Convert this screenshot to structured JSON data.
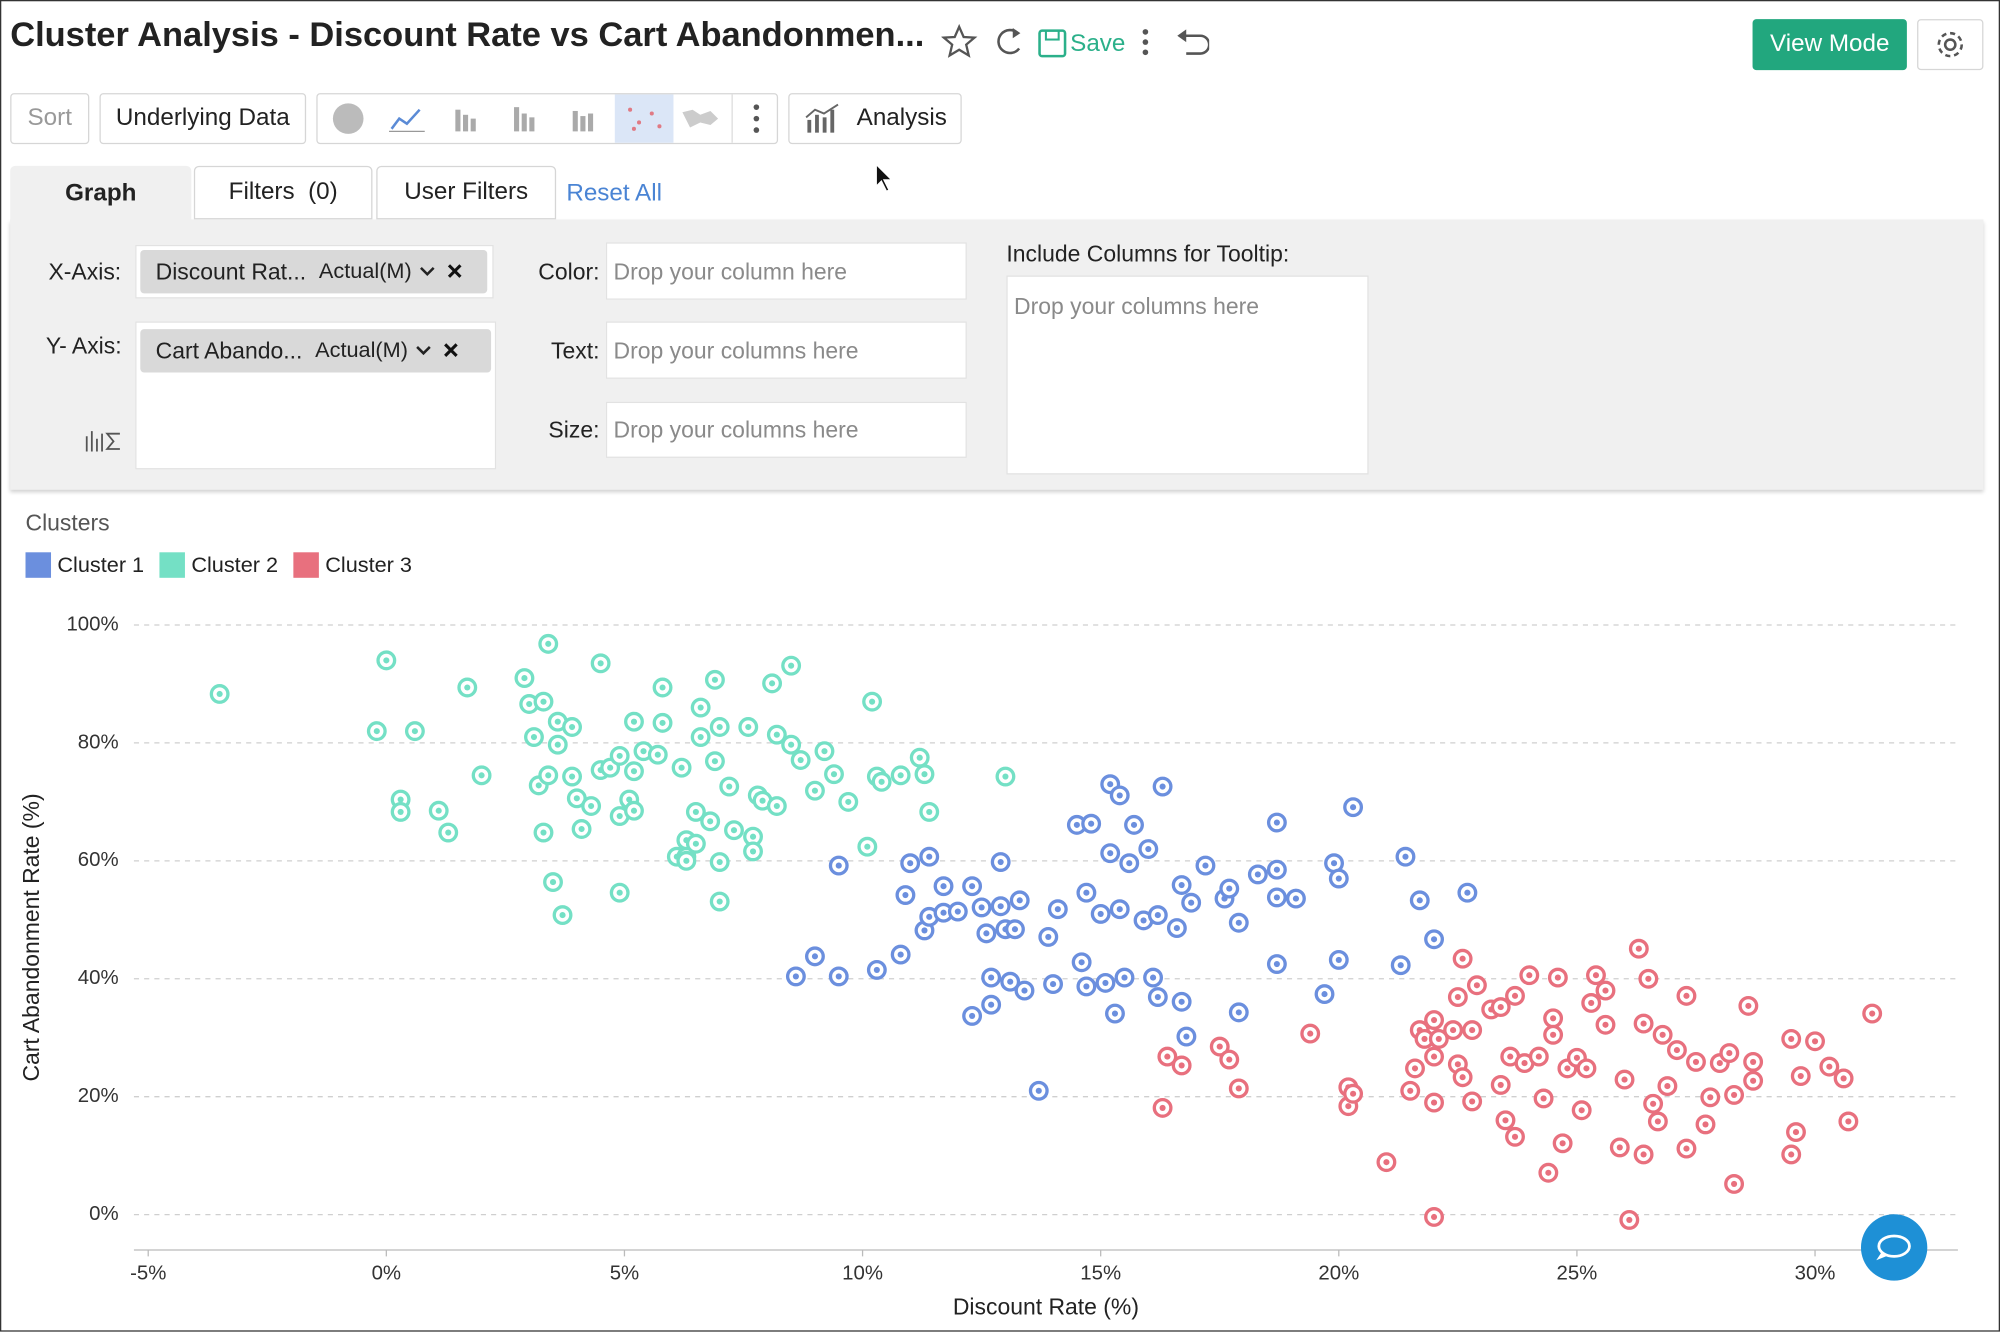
{
  "header": {
    "title": "Cluster Analysis - Discount Rate vs Cart Abandonmen...",
    "save": "Save",
    "view_mode": "View Mode"
  },
  "toolbar": {
    "sort": "Sort",
    "underlying_data": "Underlying Data",
    "analysis": "Analysis"
  },
  "tabs": [
    "Graph",
    "Filters  (0)",
    "User Filters"
  ],
  "reset_all": "Reset All",
  "shelf": {
    "x_axis_label": "X-Axis:",
    "x_axis_column": "Discount Rat...",
    "x_axis_agg": "Actual(M)",
    "y_axis_label": "Y- Axis:",
    "y_axis_column": "Cart Abando...",
    "y_axis_agg": "Actual(M)",
    "color_label": "Color:",
    "color_placeholder": "Drop your column here",
    "text_label": "Text:",
    "text_placeholder": "Drop your columns here",
    "size_label": "Size:",
    "size_placeholder": "Drop your columns here",
    "tooltip_label": "Include Columns for Tooltip:",
    "tooltip_placeholder": "Drop your columns here"
  },
  "chart_data": {
    "type": "scatter",
    "legend_title": "Clusters",
    "x_label": "Discount Rate (%)",
    "y_label": "Cart Abandonment Rate (%)",
    "xlim": [
      -5.3,
      33
    ],
    "ylim": [
      -6,
      100
    ],
    "xticks": [
      {
        "value": -5,
        "label": "-5%"
      },
      {
        "value": 0,
        "label": "0%"
      },
      {
        "value": 5,
        "label": "5%"
      },
      {
        "value": 10,
        "label": "10%"
      },
      {
        "value": 15,
        "label": "15%"
      },
      {
        "value": 20,
        "label": "20%"
      },
      {
        "value": 25,
        "label": "25%"
      },
      {
        "value": 30,
        "label": "30%"
      }
    ],
    "yticks": [
      {
        "value": 0,
        "label": "0%"
      },
      {
        "value": 20,
        "label": "20%"
      },
      {
        "value": 40,
        "label": "40%"
      },
      {
        "value": 60,
        "label": "60%"
      },
      {
        "value": 80,
        "label": "80%"
      },
      {
        "value": 100,
        "label": "100%"
      }
    ],
    "grid": true,
    "series": [
      {
        "name": "Cluster 1",
        "color": "#6b8fde",
        "x": [
          8.6,
          9.0,
          9.5,
          9.5,
          10.3,
          10.8,
          10.9,
          11.0,
          11.3,
          11.4,
          11.4,
          11.7,
          11.7,
          12.0,
          12.3,
          12.3,
          12.5,
          12.6,
          12.7,
          12.7,
          12.9,
          12.9,
          13.0,
          13.1,
          13.2,
          13.3,
          13.4,
          13.7,
          13.9,
          14.0,
          14.1,
          14.5,
          14.6,
          14.7,
          14.8,
          14.7,
          15.0,
          15.1,
          15.2,
          15.2,
          15.3,
          15.4,
          15.4,
          15.5,
          15.6,
          15.7,
          15.9,
          16.0,
          16.1,
          16.2,
          16.3,
          16.2,
          16.6,
          16.7,
          16.7,
          16.8,
          16.9,
          17.2,
          17.6,
          17.7,
          17.9,
          17.9,
          18.3,
          18.7,
          18.7,
          18.7,
          18.7,
          19.1,
          19.7,
          19.9,
          20.0,
          20.0,
          20.3,
          21.3,
          21.4,
          21.7,
          22.0,
          22.7
        ],
        "values": [
          40.4,
          43.8,
          40.4,
          59.2,
          41.5,
          44.1,
          54.2,
          59.6,
          48.2,
          50.5,
          60.7,
          55.7,
          51.2,
          51.4,
          33.7,
          55.7,
          52.1,
          47.7,
          40.2,
          35.6,
          52.3,
          59.8,
          48.4,
          39.5,
          48.4,
          53.3,
          38,
          21,
          47.1,
          39.1,
          51.8,
          66.1,
          42.8,
          38.7,
          66.3,
          54.6,
          51,
          39.3,
          61.3,
          73,
          34.1,
          51.8,
          71.1,
          40.2,
          59.6,
          66.1,
          49.9,
          62,
          40.2,
          50.8,
          72.6,
          36.9,
          48.6,
          36.1,
          55.9,
          30.2,
          52.9,
          59.2,
          53.6,
          55.3,
          49.5,
          34.3,
          57.7,
          66.5,
          42.5,
          53.8,
          58.5,
          53.6,
          37.4,
          59.6,
          57,
          43.2,
          69.1,
          42.3,
          60.7,
          53.3,
          46.7,
          54.6
        ]
      },
      {
        "name": "Cluster 2",
        "color": "#74e0c5",
        "x": [
          -3.5,
          0,
          -0.2,
          0.6,
          0.3,
          0.3,
          1.1,
          1.3,
          1.7,
          2.0,
          2.9,
          3.1,
          3.0,
          3.4,
          3.3,
          3.3,
          3.5,
          3.7,
          3.6,
          3.6,
          3.9,
          3.2,
          3.4,
          3.9,
          4.1,
          4.0,
          4.3,
          4.5,
          4.5,
          4.7,
          4.9,
          5.2,
          4.9,
          4.9,
          5.1,
          5.2,
          5.2,
          5.4,
          5.7,
          5.8,
          5.8,
          6.1,
          6.2,
          6.3,
          6.3,
          6.3,
          6.5,
          6.5,
          6.6,
          6.6,
          6.8,
          7.0,
          6.9,
          6.9,
          7.0,
          7.0,
          7.2,
          7.3,
          7.6,
          7.8,
          7.7,
          7.7,
          7.9,
          8.2,
          8.1,
          8.2,
          8.5,
          8.5,
          8.7,
          9.0,
          9.2,
          9.4,
          9.7,
          10.1,
          10.2,
          10.3,
          10.4,
          10.8,
          11.2,
          11.3,
          11.4,
          13.0
        ],
        "values": [
          88.3,
          94,
          82,
          82,
          70.4,
          68.3,
          68.5,
          64.8,
          89.4,
          74.5,
          91,
          81,
          86.6,
          96.8,
          87,
          64.8,
          56.4,
          50.8,
          79.7,
          83.6,
          82.7,
          72.8,
          74.5,
          74.3,
          65.4,
          70.6,
          69.3,
          75.4,
          93.5,
          75.8,
          77.8,
          75.2,
          67.6,
          54.6,
          70.4,
          68.5,
          83.6,
          78.6,
          78,
          83.4,
          89.4,
          60.7,
          75.8,
          60.7,
          60,
          63.5,
          68.3,
          62.9,
          86,
          81,
          66.7,
          82.7,
          90.7,
          76.9,
          59.8,
          53.1,
          72.6,
          65.2,
          82.7,
          71.1,
          64.1,
          61.6,
          70.2,
          69.3,
          90.1,
          81.4,
          93.1,
          79.7,
          77.1,
          71.9,
          78.6,
          74.7,
          70,
          62.4,
          87,
          74.3,
          73.4,
          74.5,
          77.5,
          74.7,
          68.3,
          74.3
        ]
      },
      {
        "name": "Cluster 3",
        "color": "#e8707e",
        "x": [
          16.4,
          16.3,
          16.7,
          17.5,
          17.7,
          17.9,
          19.4,
          20.2,
          20.2,
          20.3,
          21.0,
          21.5,
          21.6,
          21.7,
          21.8,
          22.0,
          22.0,
          22.0,
          22.0,
          22.1,
          22.4,
          22.5,
          22.5,
          22.6,
          22.6,
          22.8,
          22.9,
          22.8,
          23.2,
          23.4,
          23.4,
          23.5,
          23.6,
          23.7,
          23.7,
          23.9,
          24.0,
          24.2,
          24.3,
          24.4,
          24.5,
          24.5,
          24.6,
          24.7,
          24.8,
          25.0,
          25.1,
          25.2,
          25.3,
          25.4,
          25.6,
          25.6,
          25.9,
          26.0,
          26.1,
          26.3,
          26.4,
          26.4,
          26.5,
          26.6,
          26.7,
          26.8,
          26.9,
          27.1,
          27.3,
          27.3,
          27.5,
          27.7,
          27.8,
          28.0,
          28.2,
          28.3,
          28.3,
          28.6,
          28.7,
          28.7,
          29.5,
          29.5,
          29.6,
          29.7,
          30.0,
          30.3,
          30.6,
          30.7,
          31.2
        ],
        "values": [
          26.8,
          18.1,
          25.3,
          28.5,
          26.3,
          21.4,
          30.7,
          18.4,
          21.6,
          20.5,
          8.9,
          21,
          24.8,
          31.3,
          29.8,
          19,
          33,
          26.8,
          -0.4,
          29.8,
          31.3,
          36.9,
          25.5,
          43.4,
          23.3,
          31.3,
          38.9,
          19.2,
          34.8,
          35.2,
          22,
          16,
          26.8,
          37.1,
          13.2,
          25.7,
          40.6,
          26.8,
          19.7,
          7.1,
          33.3,
          30.5,
          40.2,
          12.1,
          24.8,
          26.6,
          17.7,
          24.8,
          35.9,
          40.6,
          38,
          32.2,
          11.4,
          22.9,
          -0.9,
          45.1,
          32.4,
          10.2,
          40,
          18.8,
          15.8,
          30.5,
          21.8,
          27.9,
          37.1,
          11.2,
          25.9,
          15.3,
          19.9,
          25.7,
          27.4,
          5.2,
          20.3,
          35.4,
          22.7,
          25.9,
          10.2,
          29.8,
          14,
          23.5,
          29.4,
          25.1,
          23.1,
          15.8,
          34.1
        ]
      }
    ]
  }
}
